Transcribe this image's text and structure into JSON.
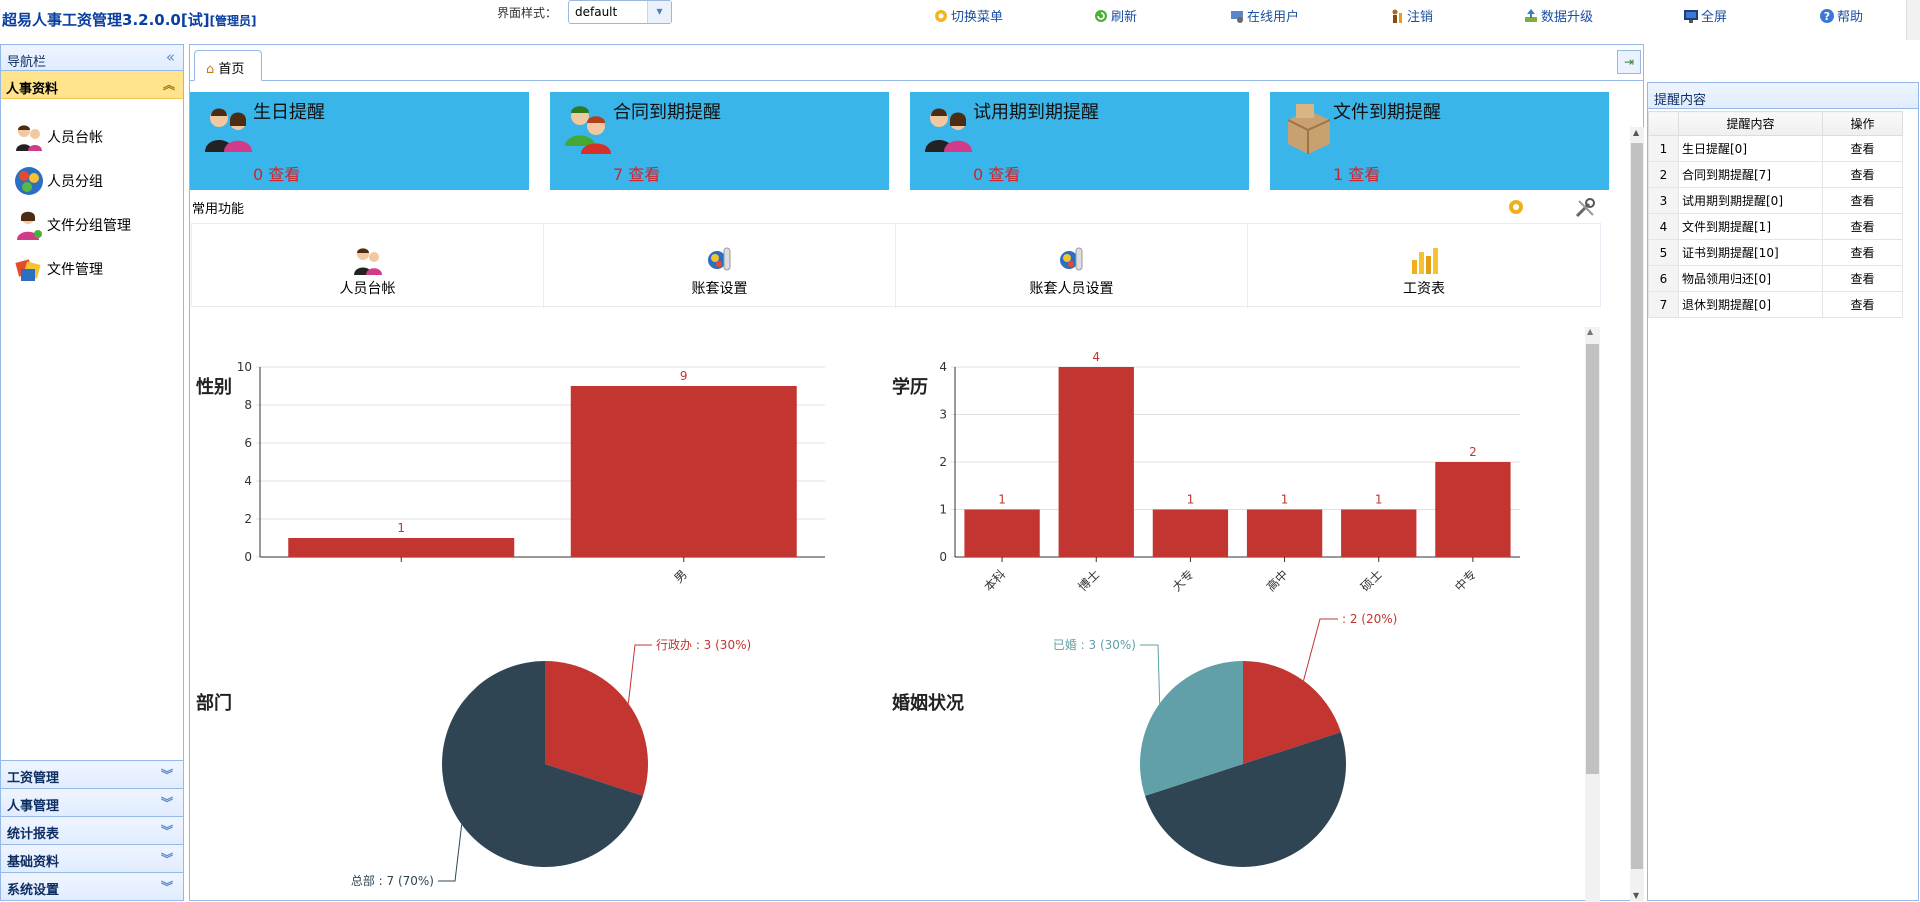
{
  "app": {
    "title": "超易人事工资管理3.2.0.0[试]",
    "role": "[管理员]"
  },
  "style_selector": {
    "label": "界面样式：",
    "value": "default"
  },
  "topnav": [
    {
      "label": "切换菜单",
      "icon": "switch-icon"
    },
    {
      "label": "刷新",
      "icon": "refresh-icon"
    },
    {
      "label": "在线用户",
      "icon": "online-users-icon"
    },
    {
      "label": "注销",
      "icon": "logout-icon"
    },
    {
      "label": "数据升级",
      "icon": "upgrade-icon"
    },
    {
      "label": "全屏",
      "icon": "fullscreen-icon"
    },
    {
      "label": "帮助",
      "icon": "help-icon"
    }
  ],
  "sidebar": {
    "header": "导航栏",
    "active_section": "人事资料",
    "items": [
      {
        "label": "人员台帐",
        "icon": "people-icon"
      },
      {
        "label": "人员分组",
        "icon": "group-icon"
      },
      {
        "label": "文件分组管理",
        "icon": "person-icon"
      },
      {
        "label": "文件管理",
        "icon": "files-icon"
      }
    ],
    "sections": [
      "工资管理",
      "人事管理",
      "统计报表",
      "基础资料",
      "系统设置"
    ]
  },
  "tabs": [
    {
      "label": "首页",
      "icon": "home-icon"
    }
  ],
  "cards": [
    {
      "title": "生日提醒",
      "count": "0",
      "link": "查看"
    },
    {
      "title": "合同到期提醒",
      "count": "7",
      "link": "查看"
    },
    {
      "title": "试用期到期提醒",
      "count": "0",
      "link": "查看"
    },
    {
      "title": "文件到期提醒",
      "count": "1",
      "link": "查看"
    }
  ],
  "common_functions": {
    "label": "常用功能",
    "items": [
      {
        "label": "人员台帐",
        "icon": "people-icon"
      },
      {
        "label": "账套设置",
        "icon": "settings-icon"
      },
      {
        "label": "账套人员设置",
        "icon": "settings-icon"
      },
      {
        "label": "工资表",
        "icon": "bar-chart-icon"
      }
    ]
  },
  "reminder_panel": {
    "title": "提醒内容",
    "columns": [
      "提醒内容",
      "操作"
    ],
    "rows": [
      {
        "no": "1",
        "content": "生日提醒[0]",
        "action": "查看"
      },
      {
        "no": "2",
        "content": "合同到期提醒[7]",
        "action": "查看"
      },
      {
        "no": "3",
        "content": "试用期到期提醒[0]",
        "action": "查看"
      },
      {
        "no": "4",
        "content": "文件到期提醒[1]",
        "action": "查看"
      },
      {
        "no": "5",
        "content": "证书到期提醒[10]",
        "action": "查看"
      },
      {
        "no": "6",
        "content": "物品领用归还[0]",
        "action": "查看"
      },
      {
        "no": "7",
        "content": "退休到期提醒[0]",
        "action": "查看"
      }
    ]
  },
  "colors": {
    "bar": "#c23531",
    "pie_dark": "#2f4554",
    "pie_teal": "#61a0a8",
    "card_bg": "#3ab5ea",
    "accent": "#ffe48d"
  },
  "chart_data": [
    {
      "type": "bar",
      "title": "性别",
      "categories": [
        "",
        "男"
      ],
      "values": [
        1,
        9
      ],
      "ylim": [
        0,
        10
      ],
      "yticks": [
        0,
        2,
        4,
        6,
        8,
        10
      ]
    },
    {
      "type": "bar",
      "title": "学历",
      "categories": [
        "本科",
        "博士",
        "大专",
        "高中",
        "硕士",
        "中专"
      ],
      "values": [
        1,
        4,
        1,
        1,
        1,
        2
      ],
      "ylim": [
        0,
        4
      ],
      "yticks": [
        0,
        1,
        2,
        3,
        4
      ]
    },
    {
      "type": "pie",
      "title": "部门",
      "slices": [
        {
          "label": "行政办",
          "value": 3,
          "percent": "30%"
        },
        {
          "label": "总部",
          "value": 7,
          "percent": "70%"
        }
      ]
    },
    {
      "type": "pie",
      "title": "婚姻状况",
      "slices": [
        {
          "label": "",
          "value": 2,
          "percent": "20%"
        },
        {
          "label": "",
          "value": 5,
          "percent": "50%"
        },
        {
          "label": "已婚",
          "value": 3,
          "percent": "30%"
        }
      ]
    }
  ]
}
